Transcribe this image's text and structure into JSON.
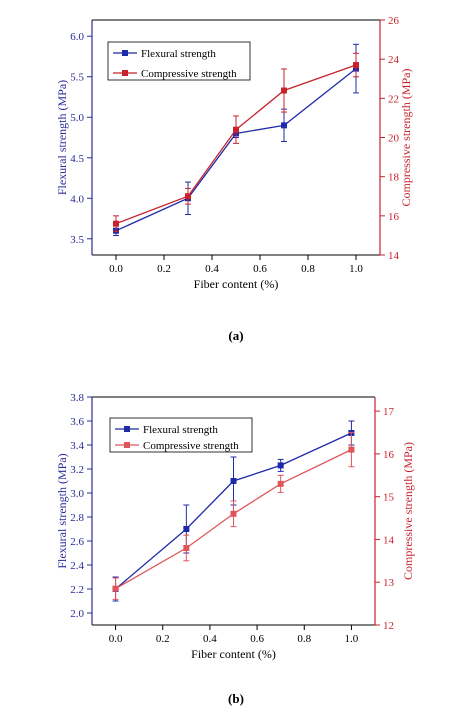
{
  "colors": {
    "left_axis": "#2b2b9a",
    "right_axis": "#c8232c",
    "flexural_a": "#1f2aa8",
    "compressive_a": "#c8232c",
    "flexural_b": "#1f2aa8",
    "compressive_b": "#e0555a",
    "frame": "#000000"
  },
  "chart_data": [
    {
      "type": "line",
      "panel_label": "(a)",
      "xlabel": "Fiber content (%)",
      "ylabel": "Flexural strength (MPa)",
      "y2label": "Compressive strength (MPa)",
      "xlim": [
        -0.1,
        1.1
      ],
      "ylim": [
        3.3,
        6.2
      ],
      "y2lim": [
        14,
        26
      ],
      "x_ticks": [
        "0.0",
        "0.2",
        "0.4",
        "0.6",
        "0.8",
        "1.0"
      ],
      "y_ticks": [
        "3.5",
        "4.0",
        "4.5",
        "5.0",
        "5.5",
        "6.0"
      ],
      "y2_ticks": [
        "14",
        "16",
        "18",
        "20",
        "22",
        "24",
        "26"
      ],
      "grid": false,
      "legend_position": "top-left",
      "x": [
        0.0,
        0.3,
        0.5,
        0.7,
        1.0
      ],
      "series": [
        {
          "name": "Flexural strength",
          "axis": "left",
          "color_key": "flexural_a",
          "values": [
            3.6,
            4.0,
            4.8,
            4.9,
            5.6
          ],
          "errors": [
            0.06,
            0.2,
            0.05,
            0.2,
            0.3
          ]
        },
        {
          "name": "Compressive strength",
          "axis": "right",
          "color_key": "compressive_a",
          "values": [
            15.6,
            17.0,
            20.4,
            22.4,
            23.7
          ],
          "errors": [
            0.4,
            0.4,
            0.7,
            1.1,
            0.6
          ]
        }
      ]
    },
    {
      "type": "line",
      "panel_label": "(b)",
      "xlabel": "Fiber content (%)",
      "ylabel": "Flexural strength (MPa)",
      "y2label": "Compressive strength (MPa)",
      "xlim": [
        -0.1,
        1.1
      ],
      "ylim": [
        1.9,
        3.8
      ],
      "y2lim": [
        12,
        17.33
      ],
      "x_ticks": [
        "0.0",
        "0.2",
        "0.4",
        "0.6",
        "0.8",
        "1.0"
      ],
      "y_ticks": [
        "2.0",
        "2.2",
        "2.4",
        "2.6",
        "2.8",
        "3.0",
        "3.2",
        "3.4",
        "3.6",
        "3.8"
      ],
      "y2_ticks": [
        "12",
        "13",
        "14",
        "15",
        "16",
        "17"
      ],
      "grid": false,
      "legend_position": "top-left",
      "x": [
        0.0,
        0.3,
        0.5,
        0.7,
        1.0
      ],
      "series": [
        {
          "name": "Flexural strength",
          "axis": "left",
          "color_key": "flexural_b",
          "values": [
            2.2,
            2.7,
            3.1,
            3.23,
            3.5
          ],
          "errors": [
            0.1,
            0.2,
            0.2,
            0.05,
            0.1
          ]
        },
        {
          "name": "Compressive strength",
          "axis": "right",
          "color_key": "compressive_b",
          "values": [
            12.85,
            13.8,
            14.6,
            15.3,
            16.1
          ],
          "errors": [
            0.25,
            0.3,
            0.3,
            0.2,
            0.4
          ]
        }
      ]
    }
  ]
}
